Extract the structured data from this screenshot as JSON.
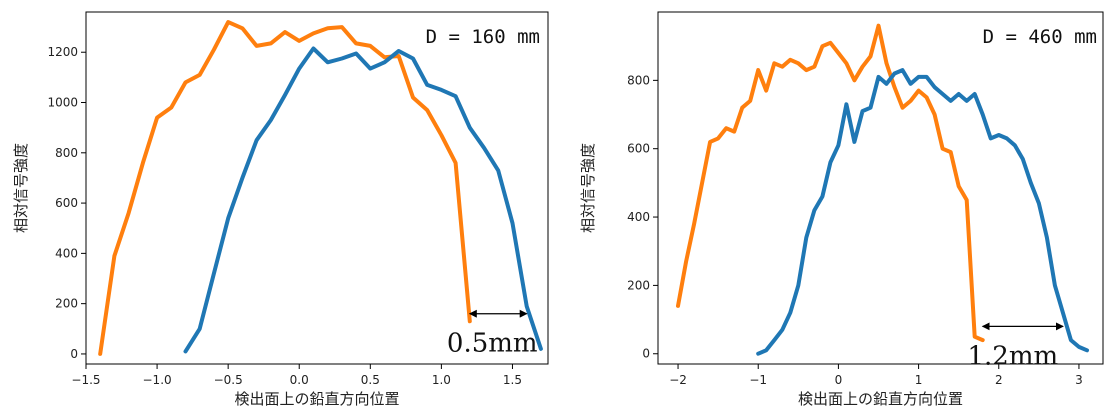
{
  "chart_data": [
    {
      "type": "line",
      "title": "D = 160 mm",
      "xlabel": "検出面上の鉛直方向位置",
      "ylabel": "相対信号強度",
      "xlim": [
        -1.5,
        1.75
      ],
      "ylim": [
        -40,
        1360
      ],
      "xticks": [
        -1.5,
        -1.0,
        -0.5,
        0.0,
        0.5,
        1.0,
        1.5
      ],
      "xtick_labels": [
        "−1.5",
        "−1.0",
        "−0.5",
        "0.0",
        "0.5",
        "1.0",
        "1.5"
      ],
      "yticks": [
        0,
        200,
        400,
        600,
        800,
        1000,
        1200
      ],
      "ytick_labels": [
        "0",
        "200",
        "400",
        "600",
        "800",
        "1000",
        "1200"
      ],
      "grid": false,
      "series": [
        {
          "color": "#ff7f0e",
          "x": [
            -1.4,
            -1.3,
            -1.2,
            -1.1,
            -1.0,
            -0.9,
            -0.8,
            -0.7,
            -0.6,
            -0.5,
            -0.4,
            -0.3,
            -0.2,
            -0.1,
            0.0,
            0.1,
            0.2,
            0.3,
            0.4,
            0.5,
            0.6,
            0.7,
            0.8,
            0.9,
            1.0,
            1.1,
            1.2
          ],
          "y": [
            0,
            390,
            560,
            760,
            940,
            980,
            1080,
            1110,
            1210,
            1320,
            1295,
            1225,
            1235,
            1280,
            1245,
            1275,
            1295,
            1300,
            1235,
            1225,
            1180,
            1185,
            1020,
            970,
            870,
            760,
            130
          ]
        },
        {
          "color": "#1f77b4",
          "x": [
            -0.8,
            -0.7,
            -0.6,
            -0.5,
            -0.4,
            -0.3,
            -0.2,
            -0.1,
            0.0,
            0.1,
            0.2,
            0.3,
            0.4,
            0.5,
            0.6,
            0.7,
            0.8,
            0.9,
            1.0,
            1.1,
            1.2,
            1.3,
            1.4,
            1.5,
            1.6,
            1.7
          ],
          "y": [
            10,
            100,
            320,
            540,
            700,
            850,
            930,
            1030,
            1135,
            1215,
            1160,
            1175,
            1195,
            1135,
            1160,
            1205,
            1175,
            1070,
            1050,
            1025,
            900,
            820,
            730,
            520,
            190,
            20
          ]
        }
      ],
      "annotation": {
        "text": "0.5mm",
        "x_from": 1.2,
        "x_to": 1.6,
        "y": 160
      }
    },
    {
      "type": "line",
      "title": "D = 460 mm",
      "xlabel": "検出面上の鉛直方向位置",
      "ylabel": "相対信号強度",
      "xlim": [
        -2.25,
        3.3
      ],
      "ylim": [
        -30,
        1000
      ],
      "xticks": [
        -2,
        -1,
        0,
        1,
        2,
        3
      ],
      "xtick_labels": [
        "−2",
        "−1",
        "0",
        "1",
        "2",
        "3"
      ],
      "yticks": [
        0,
        200,
        400,
        600,
        800
      ],
      "ytick_labels": [
        "0",
        "200",
        "400",
        "600",
        "800"
      ],
      "grid": false,
      "series": [
        {
          "color": "#ff7f0e",
          "x": [
            -2.0,
            -1.9,
            -1.8,
            -1.7,
            -1.6,
            -1.5,
            -1.4,
            -1.3,
            -1.2,
            -1.1,
            -1.0,
            -0.9,
            -0.8,
            -0.7,
            -0.6,
            -0.5,
            -0.4,
            -0.3,
            -0.2,
            -0.1,
            0.0,
            0.1,
            0.2,
            0.3,
            0.4,
            0.5,
            0.6,
            0.7,
            0.8,
            0.9,
            1.0,
            1.1,
            1.2,
            1.3,
            1.4,
            1.5,
            1.6,
            1.7,
            1.8
          ],
          "y": [
            140,
            270,
            380,
            500,
            620,
            630,
            660,
            650,
            720,
            740,
            830,
            770,
            850,
            840,
            860,
            850,
            830,
            840,
            900,
            910,
            880,
            850,
            800,
            840,
            870,
            960,
            850,
            780,
            720,
            740,
            770,
            750,
            700,
            600,
            590,
            490,
            450,
            50,
            40
          ]
        },
        {
          "color": "#1f77b4",
          "x": [
            -1.0,
            -0.9,
            -0.8,
            -0.7,
            -0.6,
            -0.5,
            -0.4,
            -0.3,
            -0.2,
            -0.1,
            0.0,
            0.1,
            0.2,
            0.3,
            0.4,
            0.5,
            0.6,
            0.7,
            0.8,
            0.9,
            1.0,
            1.1,
            1.2,
            1.3,
            1.4,
            1.5,
            1.6,
            1.7,
            1.8,
            1.9,
            2.0,
            2.1,
            2.2,
            2.3,
            2.4,
            2.5,
            2.6,
            2.7,
            2.8,
            2.9,
            3.0,
            3.1
          ],
          "y": [
            0,
            10,
            40,
            70,
            120,
            200,
            340,
            420,
            460,
            560,
            610,
            730,
            620,
            710,
            720,
            810,
            790,
            820,
            830,
            790,
            810,
            810,
            780,
            760,
            740,
            760,
            740,
            760,
            700,
            630,
            640,
            630,
            610,
            570,
            500,
            440,
            340,
            200,
            120,
            40,
            20,
            10
          ]
        }
      ],
      "annotation": {
        "text": "1.2mm",
        "x_from": 1.8,
        "x_to": 2.8,
        "y": 80
      }
    }
  ]
}
